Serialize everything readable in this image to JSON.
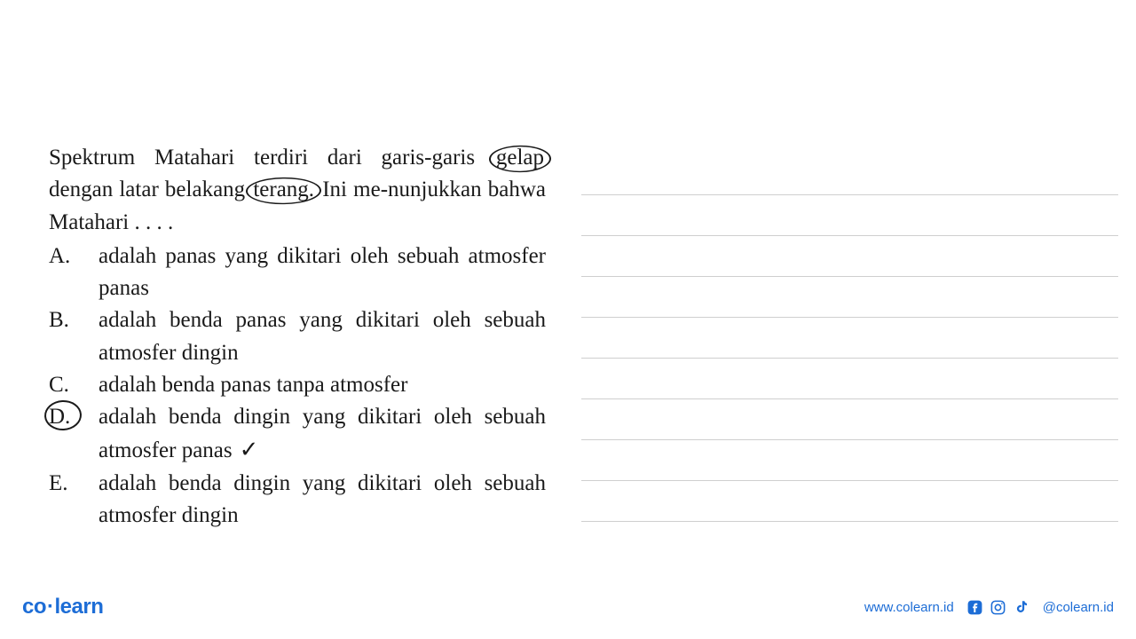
{
  "question": {
    "stem_part1": "Spektrum Matahari terdiri dari garis-garis ",
    "circled1": "gelap",
    "stem_part2": " dengan latar belakang ",
    "circled2": "terang.",
    "stem_part3": " Ini me-nunjukkan bahwa Matahari . . . .",
    "options": [
      {
        "letter": "A.",
        "text": "adalah panas yang dikitari oleh sebuah atmosfer panas",
        "circled": false,
        "checked": false
      },
      {
        "letter": "B.",
        "text": "adalah benda panas yang dikitari oleh sebuah atmosfer dingin",
        "circled": false,
        "checked": false
      },
      {
        "letter": "C.",
        "text": "adalah benda panas tanpa atmosfer",
        "circled": false,
        "checked": false
      },
      {
        "letter": "D.",
        "text": "adalah benda dingin yang dikitari oleh sebuah atmosfer panas",
        "circled": true,
        "checked": true
      },
      {
        "letter": "E.",
        "text": "adalah benda dingin yang dikitari oleh sebuah atmosfer dingin",
        "circled": false,
        "checked": false
      }
    ]
  },
  "answer_lines_count": 9,
  "footer": {
    "logo_co": "co",
    "logo_learn": "learn",
    "website": "www.colearn.id",
    "handle": "@colearn.id"
  },
  "colors": {
    "text": "#1a1a1a",
    "brand": "#1d6dd6",
    "line": "#cfcfcf",
    "background": "#ffffff"
  }
}
